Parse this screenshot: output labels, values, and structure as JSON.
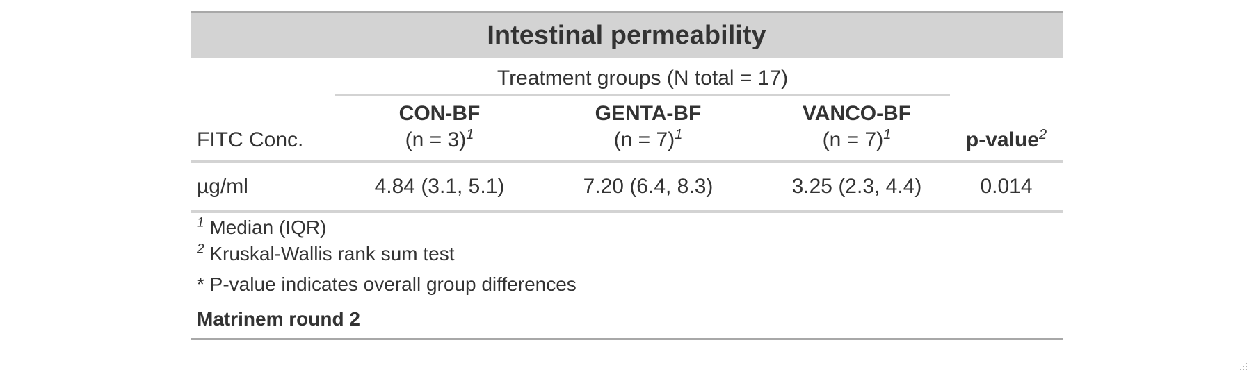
{
  "table": {
    "title": "Intestinal permeability",
    "spanner": "Treatment groups (N total = 17)",
    "stub_header": "FITC Conc.",
    "groups": [
      {
        "name": "CON-BF",
        "n": "(n = 3)",
        "mark": "1"
      },
      {
        "name": "GENTA-BF",
        "n": "(n = 7)",
        "mark": "1"
      },
      {
        "name": "VANCO-BF",
        "n": "(n = 7)",
        "mark": "1"
      }
    ],
    "pvalue_header": "p-value",
    "pvalue_mark": "2",
    "rows": [
      {
        "label": "µg/ml",
        "values": [
          "4.84 (3.1, 5.1)",
          "7.20 (6.4, 8.3)",
          "3.25 (2.3, 4.4)"
        ],
        "p": "0.014"
      }
    ],
    "footnotes": [
      {
        "mark": "1",
        "text": "Median (IQR)"
      },
      {
        "mark": "2",
        "text": "Kruskal-Wallis rank sum test"
      },
      {
        "mark": "",
        "text": "* P-value indicates overall group differences"
      }
    ],
    "source_note": "Matrinem round 2"
  },
  "colors": {
    "header_bg": "#d3d3d3",
    "rule": "#d3d3d3",
    "outer_rule": "#a8a8a8",
    "text": "#333333"
  }
}
